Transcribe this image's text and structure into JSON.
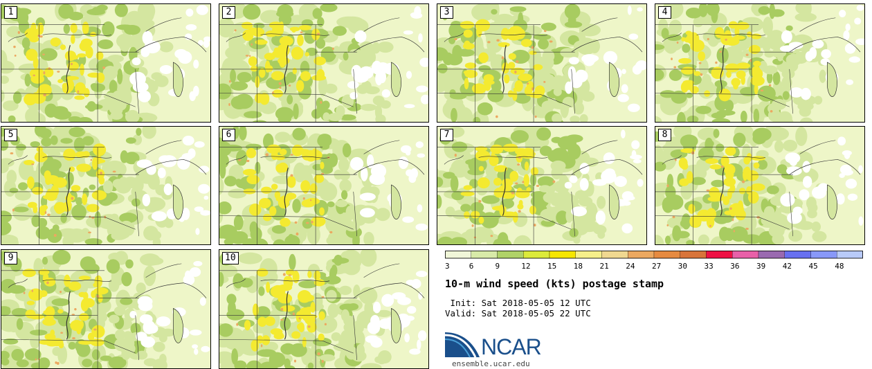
{
  "panels": [
    {
      "label": "1"
    },
    {
      "label": "2"
    },
    {
      "label": "3"
    },
    {
      "label": "4"
    },
    {
      "label": "5"
    },
    {
      "label": "6"
    },
    {
      "label": "7"
    },
    {
      "label": "8"
    },
    {
      "label": "9"
    },
    {
      "label": "10"
    }
  ],
  "colorbar": {
    "ticks": [
      "3",
      "6",
      "9",
      "12",
      "15",
      "18",
      "21",
      "24",
      "27",
      "30",
      "33",
      "36",
      "39",
      "42",
      "45",
      "48"
    ],
    "colors": [
      "#f0f6d8",
      "#d8eaa8",
      "#b0d268",
      "#dcea3a",
      "#f6e600",
      "#f6ef8a",
      "#f0d890",
      "#eca860",
      "#e68a40",
      "#d8743a",
      "#ee1144",
      "#e860a8",
      "#9a6ab0",
      "#6870f0",
      "#8898f8",
      "#b8caf8"
    ]
  },
  "title": "10-m wind speed (kts) postage stamp",
  "init": " Init: Sat 2018-05-05 12 UTC",
  "valid": "Valid: Sat 2018-05-05 22 UTC",
  "logo": {
    "name": "NCAR",
    "url": "ensemble.ucar.edu"
  },
  "map_colors": {
    "light": "#eef6c8",
    "mid": "#d4e6a0",
    "green": "#a8cc60",
    "yellow": "#f4ea30",
    "orange": "#eca860",
    "white": "#ffffff",
    "border": "#333333"
  }
}
